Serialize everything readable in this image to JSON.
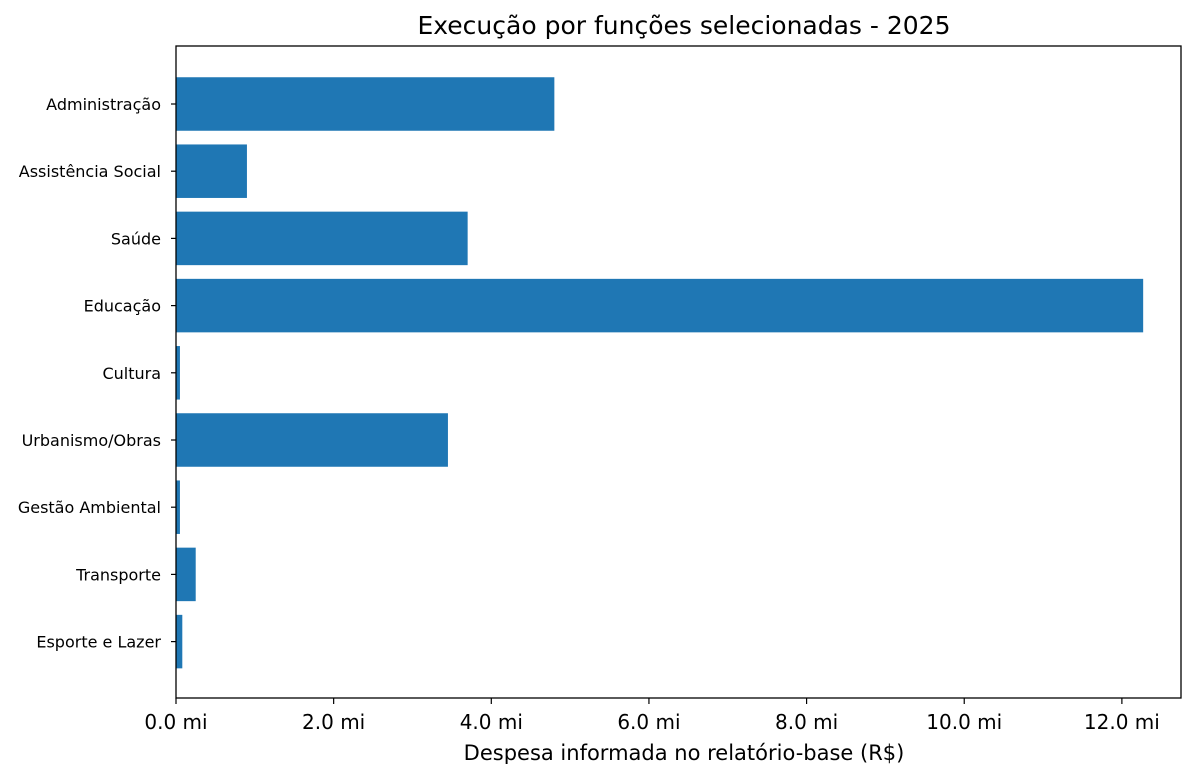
{
  "chart_data": {
    "type": "bar",
    "orientation": "horizontal",
    "title": "Execução por funções selecionadas - 2025",
    "xlabel": "Despesa informada no relatório-base (R$)",
    "ylabel": "",
    "categories": [
      "Administração",
      "Assistência Social",
      "Saúde",
      "Educação",
      "Cultura",
      "Urbanismo/Obras",
      "Gestão Ambiental",
      "Transporte",
      "Esporte e Lazer"
    ],
    "values": [
      4800000,
      900000,
      3700000,
      12270000,
      50000,
      3450000,
      50000,
      250000,
      80000
    ],
    "xlim": [
      0,
      12750000
    ],
    "xticks": [
      0,
      2000000,
      4000000,
      6000000,
      8000000,
      10000000,
      12000000
    ],
    "xtick_labels": [
      "0.0 mi",
      "2.0 mi",
      "4.0 mi",
      "6.0 mi",
      "8.0 mi",
      "10.0 mi",
      "12.0 mi"
    ],
    "grid": false,
    "legend": "none",
    "colors": {
      "bar": "#1f77b4",
      "axis": "#000000",
      "background": "#ffffff"
    }
  }
}
